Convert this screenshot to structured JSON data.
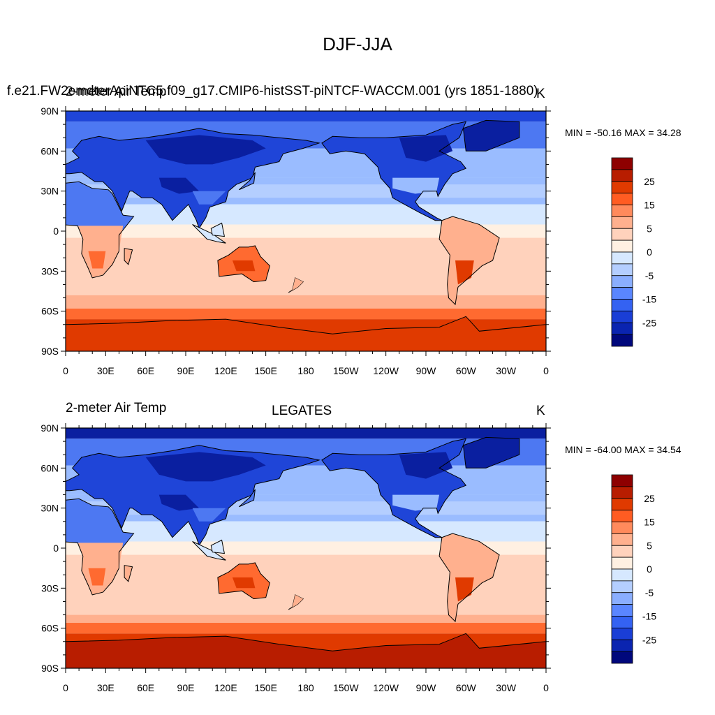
{
  "figure": {
    "title": "DJF-JJA"
  },
  "panels": [
    {
      "id": "model",
      "left_title": "2-meter Air Temp",
      "center_title": "f.e21.FWscHIST.ne30pg3_f09_g17.CMIP6-histSST-piNTCF-WACCM.001 (yrs 1851-1880)",
      "center_title_display": "f.e21.FW2emdterApiNTC5.f09_g17.CMIP6-histSST-piNTCF-WACCM.001 (yrs 1851-1880)",
      "units": "K",
      "min_max_text": "MIN = -50.16 MAX =  34.28",
      "min": -50.16,
      "max": 34.28
    },
    {
      "id": "obs",
      "left_title": "2-meter Air Temp",
      "center_title": "LEGATES",
      "units": "K",
      "min_max_text": "MIN = -64.00 MAX =  34.54",
      "min": -64.0,
      "max": 34.54
    }
  ],
  "axes": {
    "lat_labels": [
      "90N",
      "60N",
      "30N",
      "0",
      "30S",
      "60S",
      "90S"
    ],
    "lon_labels": [
      "0",
      "30E",
      "60E",
      "90E",
      "120E",
      "150E",
      "180",
      "150W",
      "120W",
      "90W",
      "60W",
      "30W",
      "0"
    ]
  },
  "colorbar": {
    "labels": [
      "25",
      "15",
      "5",
      "0",
      "-5",
      "-15",
      "-25"
    ],
    "colors": [
      "#8e0000",
      "#b81d00",
      "#e03a00",
      "#ff5c22",
      "#ff8a5c",
      "#ffb08e",
      "#ffd2bc",
      "#fff0e2",
      "#d6e8ff",
      "#b4ceff",
      "#8aaeff",
      "#5a86ff",
      "#3462f2",
      "#1a3ed6",
      "#0a24b0",
      "#00087c"
    ]
  },
  "map_colors": {
    "very_cold": "#0a1fa0",
    "cold": "#1f45d8",
    "cool": "#4d78f2",
    "mild_cool": "#9abcff",
    "near_zero_neg": "#d6e8ff",
    "near_zero_pos": "#fff0e2",
    "warm_light": "#ffd2bc",
    "warm": "#ffb08e",
    "hot": "#ff6a30",
    "very_hot": "#e03a00",
    "extreme": "#b81d00"
  }
}
